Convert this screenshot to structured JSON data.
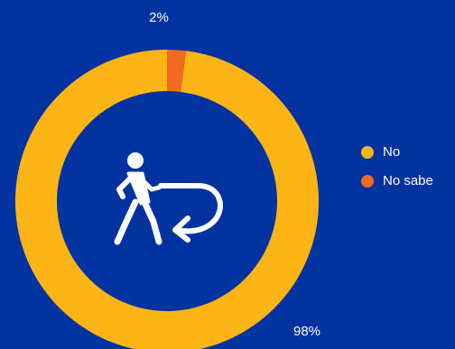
{
  "chart_data": {
    "type": "pie",
    "donut": true,
    "categories": [
      "No",
      "No sabe"
    ],
    "values": [
      98,
      2
    ],
    "data_labels": [
      "98%",
      "2%"
    ],
    "colors": [
      "#fdb515",
      "#f26b21"
    ],
    "legend_position": "right",
    "center_icon": "person-walking-return-icon"
  },
  "colors": {
    "background": "#0033a0",
    "text": "#ffffff"
  }
}
